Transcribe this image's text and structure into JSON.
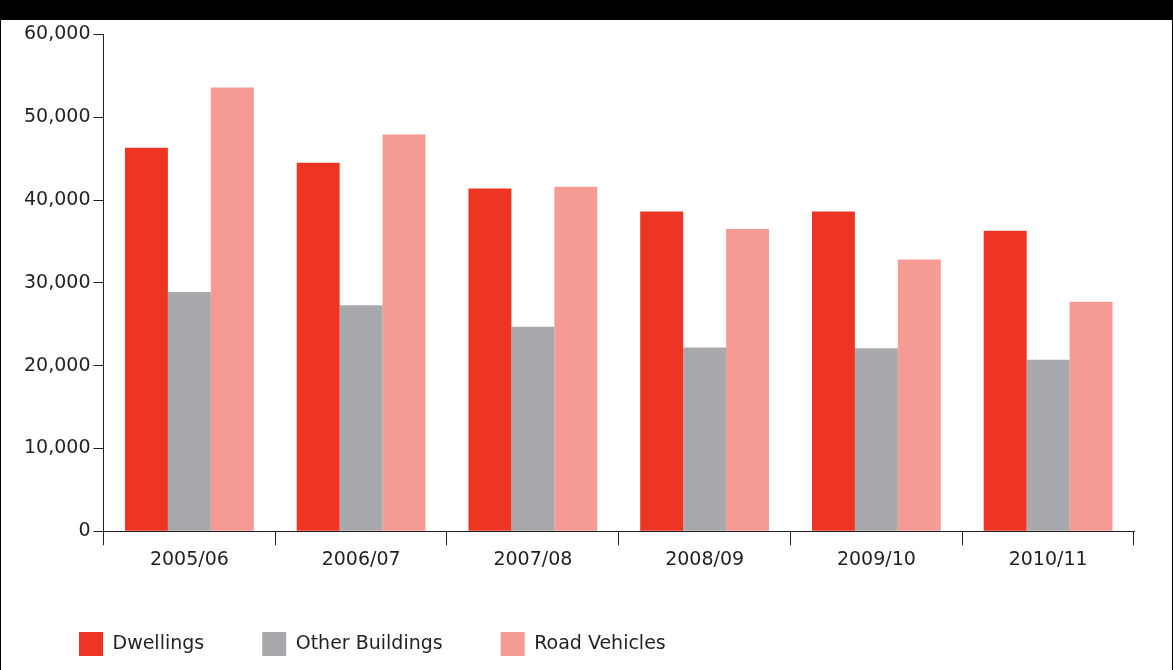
{
  "chart_data": {
    "type": "bar",
    "categories": [
      "2005/06",
      "2006/07",
      "2007/08",
      "2008/09",
      "2009/10",
      "2010/11"
    ],
    "series": [
      {
        "name": "Dwellings",
        "color": "#ee3524",
        "values": [
          46300,
          44500,
          41400,
          38600,
          38600,
          36300
        ]
      },
      {
        "name": "Other Buildings",
        "color": "#a7a9ac",
        "values": [
          28900,
          27300,
          24700,
          22200,
          22100,
          20700
        ]
      },
      {
        "name": "Road Vehicles",
        "color": "#f59b93",
        "values": [
          53600,
          47900,
          41600,
          36500,
          32800,
          27700
        ]
      }
    ],
    "ylim": [
      0,
      60000
    ],
    "yticks": [
      {
        "value": 0,
        "label": "0"
      },
      {
        "value": 10000,
        "label": "10,000"
      },
      {
        "value": 20000,
        "label": "20,000"
      },
      {
        "value": 30000,
        "label": "30,000"
      },
      {
        "value": 40000,
        "label": "40,000"
      },
      {
        "value": 50000,
        "label": "50,000"
      },
      {
        "value": 60000,
        "label": "60,000"
      }
    ],
    "grid": false,
    "legend": "bottom left"
  }
}
